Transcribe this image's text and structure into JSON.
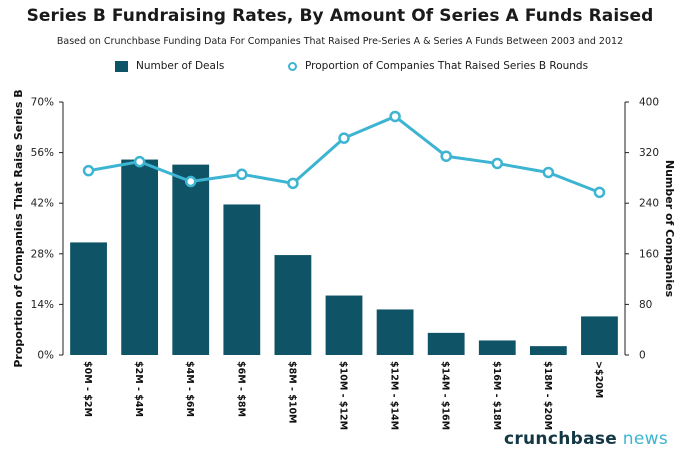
{
  "chart_data": {
    "type": "bar+line",
    "title": "Series B Fundraising Rates, By Amount Of Series A Funds Raised",
    "subtitle": "Based on Crunchbase Funding Data For Companies That Raised Pre-Series A & Series A Funds Between 2003 and 2012",
    "categories": [
      "$0M - $2M",
      "$2M - $4M",
      "$4M - $6M",
      "$6M - $8M",
      "$8M - $10M",
      "$10M - $12M",
      "$12M - $14M",
      "$14M - $16M",
      "$16M - $18M",
      "$18M - $20M",
      ">$20M"
    ],
    "series": [
      {
        "name": "Number of Deals",
        "type": "bar",
        "axis": "right",
        "color": "#0e5466",
        "values": [
          178,
          309,
          301,
          238,
          158,
          94,
          72,
          35,
          23,
          14,
          61
        ]
      },
      {
        "name": "Proportion of Companies That Raised Series B Rounds",
        "type": "line",
        "axis": "left",
        "color": "#3cb4d2",
        "values": [
          51,
          53.5,
          48,
          50,
          47.5,
          60,
          66,
          55,
          53,
          50.5,
          45
        ]
      }
    ],
    "y_left": {
      "label": "Proportion of Companies That Raise Series B",
      "range": [
        0,
        70
      ],
      "ticks": [
        0,
        14,
        28,
        42,
        56,
        70
      ],
      "tick_labels": [
        "0%",
        "14%",
        "28%",
        "42%",
        "56%",
        "70%"
      ]
    },
    "y_right": {
      "label": "Number of Companies",
      "range": [
        0,
        400
      ],
      "ticks": [
        0,
        80,
        160,
        240,
        320,
        400
      ],
      "tick_labels": [
        "0",
        "80",
        "160",
        "240",
        "320",
        "400"
      ]
    },
    "legend_position": "top-center",
    "grid": false
  },
  "brand": {
    "part1": "crunchbase",
    "part2": " news"
  }
}
